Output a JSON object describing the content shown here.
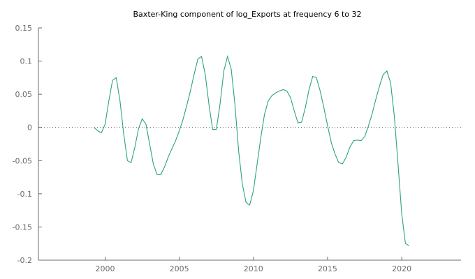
{
  "chart_data": {
    "type": "line",
    "title": "Baxter-King component of log_Exports at frequency 6 to 32",
    "xlabel": "",
    "ylabel": "",
    "xlim": [
      1995.5,
      2024.0
    ],
    "ylim": [
      -0.2,
      0.15
    ],
    "x_ticks": [
      2000,
      2005,
      2010,
      2015,
      2020
    ],
    "y_ticks": [
      0.15,
      0.1,
      0.05,
      0,
      -0.05,
      -0.1,
      -0.15,
      -0.2
    ],
    "x_tick_labels": [
      "2000",
      "2005",
      "2010",
      "2015",
      "2020"
    ],
    "y_tick_labels": [
      "0.15",
      "0.1",
      "0.05",
      "0",
      "-0.05",
      "-0.1",
      "-0.15",
      "-0.2"
    ],
    "zero_line": true,
    "grid": false,
    "series_color": "#2ca37a",
    "zero_line_color": "#555555",
    "axis_color": "#6b6b6b",
    "series": [
      {
        "x": [
          1999.25,
          1999.5,
          1999.75,
          2000.0,
          2000.25,
          2000.5,
          2000.75,
          2001.0,
          2001.25,
          2001.5,
          2001.75,
          2002.0,
          2002.25,
          2002.5,
          2002.75,
          2003.0,
          2003.25,
          2003.5,
          2003.75,
          2004.0,
          2004.25,
          2004.5,
          2004.75,
          2005.0,
          2005.25,
          2005.5,
          2005.75,
          2006.0,
          2006.25,
          2006.5,
          2006.75,
          2007.0,
          2007.25,
          2007.5,
          2007.75,
          2008.0,
          2008.25,
          2008.5,
          2008.75,
          2009.0,
          2009.25,
          2009.5,
          2009.75,
          2010.0,
          2010.25,
          2010.5,
          2010.75,
          2011.0,
          2011.25,
          2011.5,
          2011.75,
          2012.0,
          2012.25,
          2012.5,
          2012.75,
          2013.0,
          2013.25,
          2013.5,
          2013.75,
          2014.0,
          2014.25,
          2014.5,
          2014.75,
          2015.0,
          2015.25,
          2015.5,
          2015.75,
          2016.0,
          2016.25,
          2016.5,
          2016.75,
          2017.0,
          2017.25,
          2017.5,
          2017.75,
          2018.0,
          2018.25,
          2018.5,
          2018.75,
          2019.0,
          2019.25,
          2019.5,
          2019.75,
          2020.0,
          2020.25,
          2020.5
        ],
        "values": [
          0.0,
          -0.005,
          -0.008,
          0.005,
          0.04,
          0.071,
          0.075,
          0.04,
          -0.01,
          -0.05,
          -0.053,
          -0.03,
          -0.002,
          0.013,
          0.005,
          -0.025,
          -0.055,
          -0.071,
          -0.071,
          -0.06,
          -0.045,
          -0.032,
          -0.02,
          -0.005,
          0.012,
          0.033,
          0.055,
          0.08,
          0.103,
          0.107,
          0.08,
          0.035,
          -0.003,
          -0.003,
          0.035,
          0.085,
          0.107,
          0.088,
          0.035,
          -0.035,
          -0.085,
          -0.113,
          -0.117,
          -0.095,
          -0.055,
          -0.015,
          0.02,
          0.04,
          0.048,
          0.052,
          0.055,
          0.057,
          0.055,
          0.045,
          0.025,
          0.007,
          0.008,
          0.03,
          0.057,
          0.077,
          0.075,
          0.055,
          0.03,
          0.003,
          -0.023,
          -0.04,
          -0.053,
          -0.055,
          -0.045,
          -0.03,
          -0.02,
          -0.019,
          -0.02,
          -0.014,
          0.002,
          0.02,
          0.042,
          0.062,
          0.08,
          0.085,
          0.067,
          0.017,
          -0.055,
          -0.13,
          -0.175,
          -0.178
        ]
      }
    ]
  }
}
